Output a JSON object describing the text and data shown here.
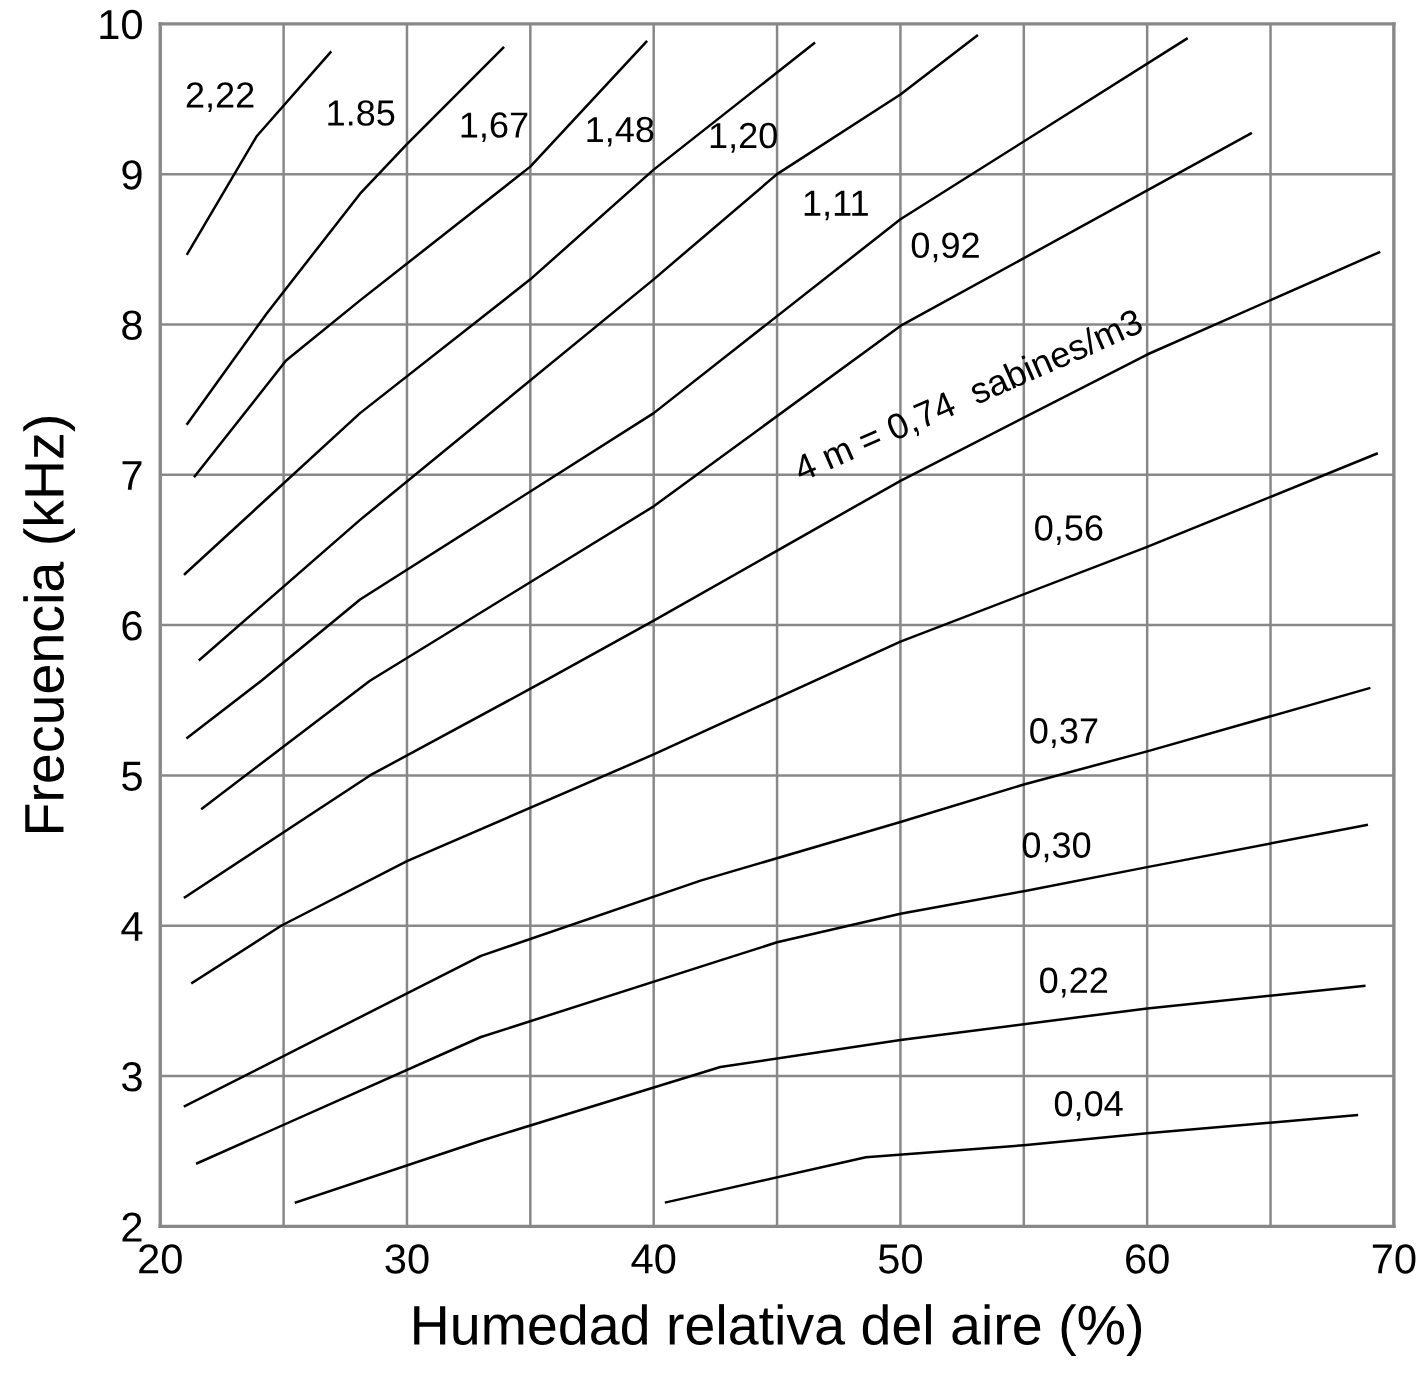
{
  "chart_data": {
    "type": "line",
    "xlabel": "Humedad relativa del aire (%)",
    "ylabel": "Frecuencia (kHz)",
    "xlim": [
      20,
      70
    ],
    "ylim": [
      2,
      10
    ],
    "xticks": [
      20,
      {
        "value": 25,
        "label": null
      },
      30,
      {
        "value": 35,
        "label": null
      },
      40,
      {
        "value": 45,
        "label": null
      },
      50,
      {
        "value": 55,
        "label": null
      },
      60,
      {
        "value": 65,
        "label": null
      },
      70
    ],
    "yticks": [
      2,
      3,
      4,
      5,
      6,
      7,
      8,
      9,
      10
    ],
    "grid": true,
    "marker": "none",
    "line_style": "solid",
    "series": [
      {
        "color": "#000000",
        "x": [
          21.1,
          23.9,
          26.9
        ],
        "values": [
          8.47,
          9.25,
          9.81
        ]
      },
      {
        "color": "#000000",
        "x": [
          21.1,
          24.3,
          28.1,
          30,
          33.9
        ],
        "values": [
          7.34,
          8.07,
          8.87,
          9.2,
          9.84
        ]
      },
      {
        "color": "#000000",
        "x": [
          21.4,
          25.1,
          28.1,
          35,
          39.7
        ],
        "values": [
          6.99,
          7.76,
          8.16,
          9.05,
          9.88
        ]
      },
      {
        "color": "#000000",
        "x": [
          21.0,
          28.1,
          35,
          40,
          46.5
        ],
        "values": [
          6.34,
          7.41,
          8.3,
          9.03,
          9.87
        ]
      },
      {
        "color": "#000000",
        "x": [
          21.6,
          28.1,
          40,
          45,
          50,
          53.1
        ],
        "values": [
          5.77,
          6.7,
          8.3,
          9.0,
          9.53,
          9.92
        ]
      },
      {
        "color": "#000000",
        "x": [
          21.1,
          24.1,
          28.1,
          40,
          50,
          61.6
        ],
        "values": [
          5.25,
          5.63,
          6.17,
          7.41,
          8.7,
          9.9
        ]
      },
      {
        "color": "#000000",
        "x": [
          21.7,
          28.5,
          40,
          50,
          64.2
        ],
        "values": [
          4.78,
          5.63,
          6.79,
          7.99,
          9.27
        ]
      },
      {
        "color": "#000000",
        "x": [
          21.0,
          28.5,
          35.6,
          40,
          50,
          60,
          69.4
        ],
        "values": [
          4.19,
          5.0,
          5.63,
          6.03,
          6.96,
          7.8,
          8.48
        ]
      },
      {
        "color": "#000000",
        "x": [
          21.3,
          24.9,
          30,
          40,
          50,
          60,
          69.3
        ],
        "values": [
          3.62,
          4.0,
          4.43,
          5.14,
          5.89,
          6.52,
          7.14
        ]
      },
      {
        "color": "#000000",
        "x": [
          21.0,
          33.0,
          41.9,
          50,
          55,
          60,
          69.0
        ],
        "values": [
          2.8,
          3.8,
          4.3,
          4.69,
          4.94,
          5.16,
          5.58
        ]
      },
      {
        "color": "#000000",
        "x": [
          21.5,
          33.0,
          42.7,
          45,
          50,
          55,
          60,
          68.9
        ],
        "values": [
          2.42,
          3.26,
          3.77,
          3.89,
          4.08,
          4.23,
          4.39,
          4.67
        ]
      },
      {
        "color": "#000000",
        "x": [
          25.5,
          33.0,
          42.7,
          50,
          60,
          68.8
        ],
        "values": [
          2.16,
          2.57,
          3.06,
          3.24,
          3.45,
          3.6
        ]
      },
      {
        "color": "#000000",
        "x": [
          40.5,
          48.6,
          55,
          60,
          68.5
        ],
        "values": [
          2.16,
          2.46,
          2.54,
          2.62,
          2.74
        ]
      }
    ],
    "annotations": [
      {
        "text": "2,22",
        "x": 24.3,
        "y": 9.32
      },
      {
        "text": "1.85",
        "x": 30,
        "y": 9.2
      },
      {
        "text": "1,67",
        "x": 35.4,
        "y": 9.12
      },
      {
        "text": "1,48",
        "x": 40.5,
        "y": 9.09
      },
      {
        "text": "1,20",
        "x": 45.5,
        "y": 9.05
      },
      {
        "text": "1,11",
        "x": 49.2,
        "y": 8.6
      },
      {
        "text": "0,92",
        "x": 53.7,
        "y": 8.32
      },
      {
        "text": "4 m = 0,74  sabines/m3",
        "x": 60.5,
        "y": 7.84
      },
      {
        "text": "0,56",
        "x": 58.7,
        "y": 6.44
      },
      {
        "text": "0,37",
        "x": 58.5,
        "y": 5.09
      },
      {
        "text": "0,30",
        "x": 58.2,
        "y": 4.33
      },
      {
        "text": "0,22",
        "x": 58.9,
        "y": 3.43
      },
      {
        "text": "0,04",
        "x": 59.5,
        "y": 2.61
      }
    ]
  }
}
